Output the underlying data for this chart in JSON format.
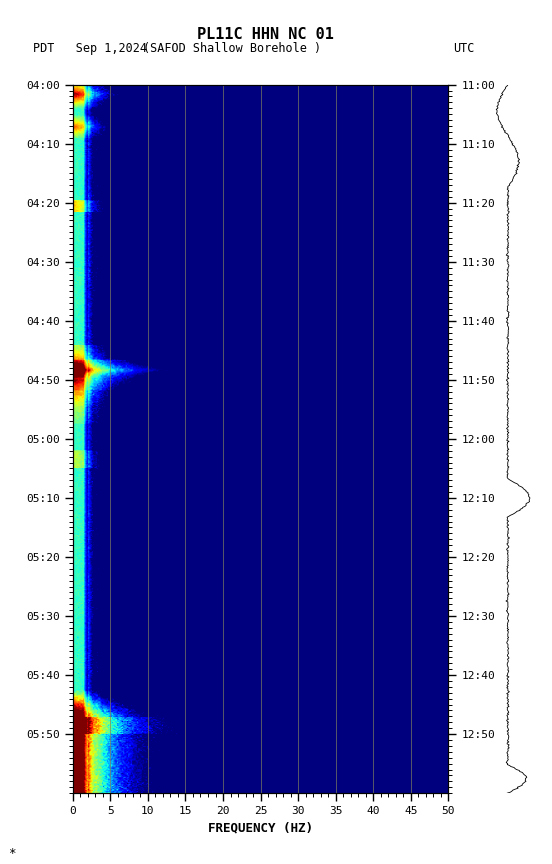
{
  "title_line1": "PL11C HHN NC 01",
  "title_line2_left": "PDT   Sep 1,2024",
  "title_line2_center": "(SAFOD Shallow Borehole )",
  "title_line2_right": "UTC",
  "xlabel": "FREQUENCY (HZ)",
  "freq_min": 0,
  "freq_max": 50,
  "time_labels_left": [
    "04:00",
    "04:10",
    "04:20",
    "04:30",
    "04:40",
    "04:50",
    "05:00",
    "05:10",
    "05:20",
    "05:30",
    "05:40",
    "05:50"
  ],
  "time_labels_right": [
    "11:00",
    "11:10",
    "11:20",
    "11:30",
    "11:40",
    "11:50",
    "12:00",
    "12:10",
    "12:20",
    "12:30",
    "12:40",
    "12:50"
  ],
  "freq_ticks": [
    0,
    5,
    10,
    15,
    20,
    25,
    30,
    35,
    40,
    45,
    50
  ],
  "grid_freqs": [
    5,
    10,
    15,
    20,
    25,
    30,
    35,
    40,
    45
  ],
  "background_color": "#ffffff",
  "n_freq": 300,
  "n_time": 720,
  "asterisk": "*"
}
